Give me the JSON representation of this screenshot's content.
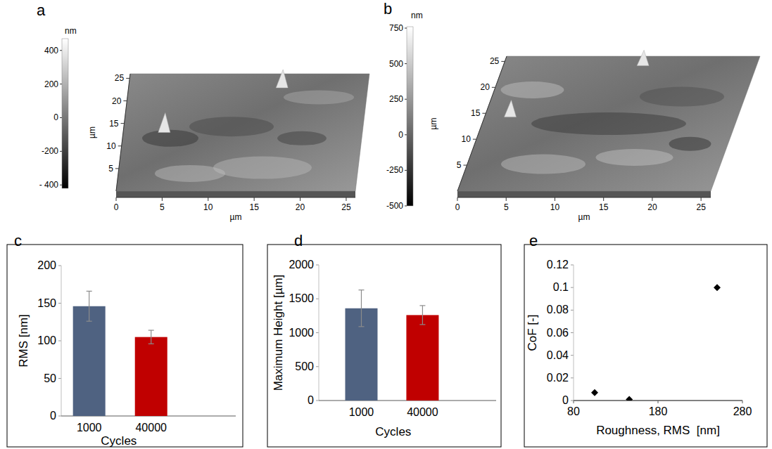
{
  "chart_data": [
    {
      "type": "surface",
      "panel": "a",
      "xlabel": "µm",
      "ylabel": "µm",
      "xlim": [
        0,
        26
      ],
      "xticks": [
        0,
        5,
        10,
        15,
        20,
        25
      ],
      "ylim": [
        0,
        26
      ],
      "yticks": [
        5,
        10,
        15,
        20,
        25
      ],
      "colorbar": {
        "label": "nm",
        "range": [
          -420,
          470
        ],
        "ticks": [
          {
            "value": -400,
            "label": "- 400"
          },
          -200,
          0,
          200,
          400
        ]
      }
    },
    {
      "type": "surface",
      "panel": "b",
      "xlabel": "µm",
      "ylabel": "µm",
      "xlim": [
        0,
        26
      ],
      "xticks": [
        0,
        5,
        10,
        15,
        20,
        25
      ],
      "ylim": [
        0,
        26
      ],
      "yticks": [
        5,
        10,
        15,
        20,
        25
      ],
      "colorbar": {
        "label": "nm",
        "range": [
          -500,
          760
        ],
        "ticks": [
          -500,
          -250,
          0,
          250,
          500,
          750
        ]
      }
    },
    {
      "type": "bar",
      "panel": "c",
      "categories": [
        "1000",
        "40000"
      ],
      "values": [
        146,
        105
      ],
      "errors": [
        20,
        9
      ],
      "colors": [
        "#4f6281",
        "#c00000"
      ],
      "xlabel": "Cycles",
      "ylabel": "RMS [nm]",
      "ylim": [
        0,
        200
      ],
      "yticks": [
        0,
        50,
        100,
        150,
        200
      ],
      "grid": false
    },
    {
      "type": "bar",
      "panel": "d",
      "categories": [
        "1000",
        "40000"
      ],
      "values": [
        1360,
        1260
      ],
      "errors": [
        270,
        140
      ],
      "colors": [
        "#4f6281",
        "#c00000"
      ],
      "xlabel": "Cycles",
      "ylabel": "Maximum Height [µm]",
      "ylim": [
        0,
        2000
      ],
      "yticks": [
        0,
        500,
        1000,
        1500,
        2000
      ],
      "grid": false
    },
    {
      "type": "scatter",
      "panel": "e",
      "x": [
        105,
        146,
        250
      ],
      "values": [
        0.007,
        0.001,
        0.1
      ],
      "marker": "diamond",
      "color": "#000000",
      "xlabel": "Roughness, RMS  [nm]",
      "ylabel": "CoF [-]",
      "xlim": [
        80,
        280
      ],
      "xticks": [
        80,
        180,
        280
      ],
      "ylim": [
        0,
        0.12
      ],
      "yticks": [
        0,
        0.02,
        0.04,
        0.06,
        0.08,
        0.1,
        0.12
      ],
      "grid": false
    }
  ]
}
